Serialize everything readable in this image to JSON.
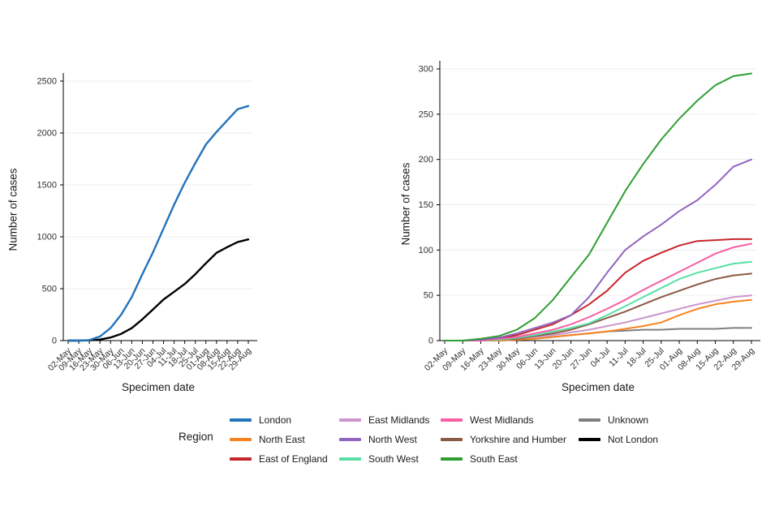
{
  "colors": {
    "London": "#2173bc",
    "North East": "#f8821f",
    "East of England": "#c8252c",
    "East Midlands": "#cd95cd",
    "North West": "#9164bf",
    "South West": "#59dfa6",
    "West Midlands": "#f85fa2",
    "Yorkshire and Humber": "#8a5a44",
    "South East": "#2f9e33",
    "Unknown": "#7f7f7f",
    "Not London": "#000000"
  },
  "chart_data": [
    {
      "type": "line",
      "title": "",
      "xlabel": "Specimen date",
      "ylabel": "Number of cases",
      "x": [
        "02-May",
        "09-May",
        "16-May",
        "23-May",
        "30-May",
        "06-Jun",
        "13-Jun",
        "20-Jun",
        "27-Jun",
        "04-Jul",
        "11-Jul",
        "18-Jul",
        "25-Jul",
        "01-Aug",
        "08-Aug",
        "15-Aug",
        "22-Aug",
        "29-Aug"
      ],
      "ylim": [
        0,
        2500
      ],
      "yticks": [
        0,
        500,
        1000,
        1500,
        2000,
        2500
      ],
      "grid": "horizontal",
      "series": [
        {
          "name": "Not London",
          "values": [
            0,
            0,
            2,
            10,
            30,
            65,
            120,
            205,
            300,
            395,
            470,
            545,
            640,
            745,
            845,
            900,
            950,
            975
          ]
        },
        {
          "name": "London",
          "values": [
            0,
            0,
            5,
            40,
            120,
            250,
            420,
            640,
            850,
            1080,
            1310,
            1520,
            1710,
            1890,
            2010,
            2120,
            2230,
            2260
          ]
        }
      ]
    },
    {
      "type": "line",
      "title": "",
      "xlabel": "Specimen date",
      "ylabel": "Number of cases",
      "x": [
        "02-May",
        "09-May",
        "16-May",
        "23-May",
        "30-May",
        "06-Jun",
        "13-Jun",
        "20-Jun",
        "27-Jun",
        "04-Jul",
        "11-Jul",
        "18-Jul",
        "25-Jul",
        "01-Aug",
        "08-Aug",
        "15-Aug",
        "22-Aug",
        "29-Aug"
      ],
      "ylim": [
        0,
        300
      ],
      "yticks": [
        0,
        50,
        100,
        150,
        200,
        250,
        300
      ],
      "grid": "horizontal",
      "series": [
        {
          "name": "Unknown",
          "values": [
            0,
            0,
            0,
            0,
            1,
            2,
            4,
            6,
            8,
            10,
            11,
            12,
            12,
            13,
            13,
            13,
            14,
            14
          ]
        },
        {
          "name": "North East",
          "values": [
            0,
            0,
            0,
            0,
            1,
            2,
            4,
            6,
            8,
            10,
            13,
            16,
            20,
            28,
            35,
            40,
            43,
            45
          ]
        },
        {
          "name": "East Midlands",
          "values": [
            0,
            0,
            0,
            1,
            2,
            4,
            6,
            9,
            12,
            16,
            20,
            25,
            30,
            35,
            40,
            44,
            48,
            50
          ]
        },
        {
          "name": "Yorkshire and Humber",
          "values": [
            0,
            0,
            0,
            1,
            2,
            5,
            8,
            12,
            18,
            25,
            32,
            40,
            48,
            55,
            62,
            68,
            72,
            74
          ]
        },
        {
          "name": "South West",
          "values": [
            0,
            0,
            0,
            1,
            3,
            6,
            10,
            14,
            19,
            28,
            38,
            48,
            58,
            68,
            75,
            80,
            85,
            87
          ]
        },
        {
          "name": "West Midlands",
          "values": [
            0,
            0,
            0,
            2,
            4,
            8,
            12,
            18,
            26,
            35,
            45,
            56,
            66,
            76,
            86,
            96,
            103,
            107
          ]
        },
        {
          "name": "East of England",
          "values": [
            0,
            0,
            1,
            3,
            6,
            12,
            18,
            28,
            40,
            55,
            75,
            88,
            97,
            105,
            110,
            111,
            112,
            112
          ]
        },
        {
          "name": "North West",
          "values": [
            0,
            0,
            1,
            3,
            8,
            14,
            20,
            28,
            48,
            75,
            100,
            115,
            128,
            143,
            155,
            172,
            192,
            200
          ]
        },
        {
          "name": "South East",
          "values": [
            0,
            0,
            2,
            5,
            12,
            25,
            45,
            70,
            95,
            130,
            165,
            195,
            222,
            245,
            265,
            282,
            292,
            295
          ]
        }
      ]
    }
  ],
  "legend": {
    "title": "Region",
    "columns": [
      [
        "London",
        "North East",
        "East of England"
      ],
      [
        "East Midlands",
        "North West",
        "South West"
      ],
      [
        "West Midlands",
        "Yorkshire and Humber",
        "South East"
      ],
      [
        "Unknown",
        "Not London"
      ]
    ]
  }
}
